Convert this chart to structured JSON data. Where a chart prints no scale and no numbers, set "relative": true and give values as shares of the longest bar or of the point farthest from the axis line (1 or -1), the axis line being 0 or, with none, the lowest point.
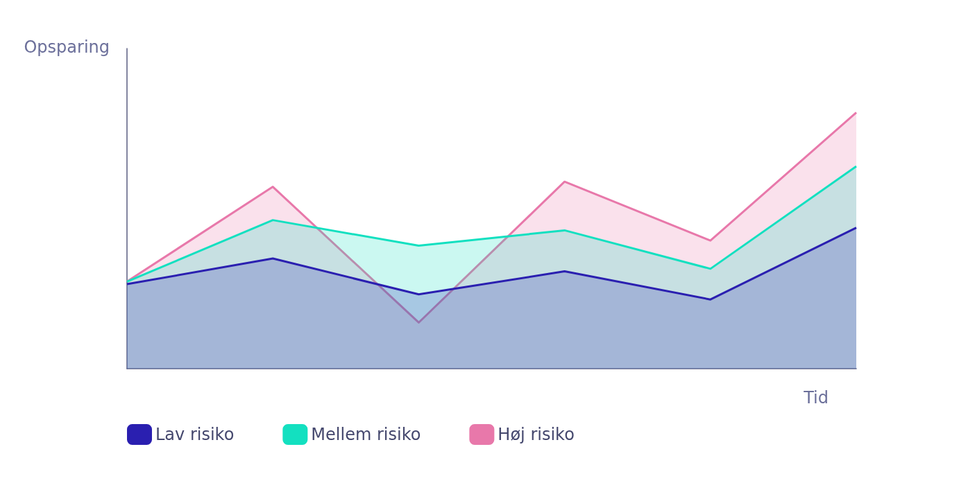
{
  "chart_data": {
    "type": "area",
    "relative": true,
    "xlabel": "Tid",
    "ylabel": "Opsparing",
    "categories": [
      null,
      null,
      null,
      null,
      null,
      null
    ],
    "legend": "bottom left",
    "series": [
      {
        "name": "Lav risiko",
        "color": "#2a1fb0",
        "values": [
          0.33,
          0.43,
          0.29,
          0.38,
          0.27,
          0.55
        ]
      },
      {
        "name": "Mellem risiko",
        "color": "#13e0c0",
        "values": [
          0.34,
          0.58,
          0.48,
          0.54,
          0.39,
          0.79
        ]
      },
      {
        "name": "Høj risiko",
        "color": "#e878aa",
        "values": [
          0.34,
          0.71,
          0.18,
          0.73,
          0.5,
          1
        ]
      }
    ]
  }
}
